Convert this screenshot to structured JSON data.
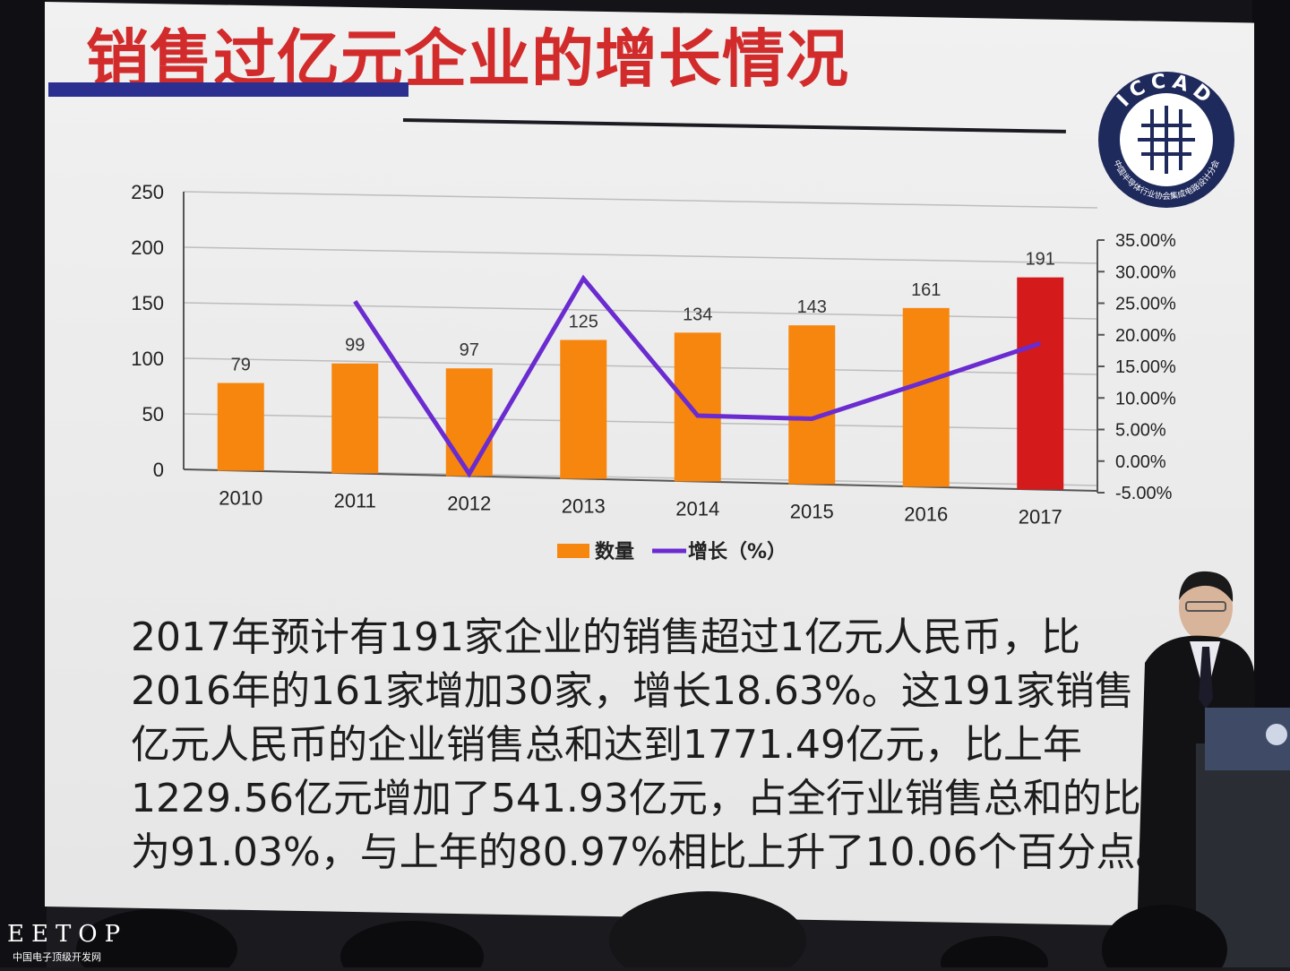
{
  "slide": {
    "title": "销售过亿元企业的增长情况",
    "logo": {
      "text": "ICCAD",
      "subtitle": "中国半导体行业协会集成电路设计分会",
      "icon": "chip-grid-icon"
    },
    "body_lines": [
      "2017年预计有191家企业的销售超过1亿元人民币，比",
      "2016年的161家增加30家，增长18.63%。这191家销售",
      "亿元人民币的企业销售总和达到1771.49亿元，比上年",
      "1229.56亿元增加了541.93亿元，占全行业销售总和的比",
      "为91.03%，与上年的80.97%相比上升了10.06个百分点。"
    ]
  },
  "watermark": {
    "logo": "EETOP",
    "subtitle": "中国电子顶级开发网"
  },
  "colors": {
    "title": "#d22b2b",
    "bar": "#f7860f",
    "bar_highlight": "#d41a1a",
    "line": "#6a2bd0",
    "accent_blue": "#2b2f8f"
  },
  "chart_data": {
    "type": "bar",
    "categories": [
      "2010",
      "2011",
      "2012",
      "2013",
      "2014",
      "2015",
      "2016",
      "2017"
    ],
    "series": [
      {
        "name": "数量",
        "type": "bar",
        "axis": "left",
        "values": [
          79,
          99,
          97,
          125,
          134,
          143,
          161,
          191
        ],
        "data_labels": [
          "79",
          "99",
          "97",
          "125",
          "134",
          "143",
          "161",
          "191"
        ],
        "highlight_index": 7
      },
      {
        "name": "增长（%）",
        "type": "line",
        "axis": "right",
        "values": [
          null,
          25.3,
          -2.0,
          28.9,
          7.2,
          6.7,
          12.6,
          18.63
        ]
      }
    ],
    "y_left": {
      "min": 0,
      "max": 250,
      "ticks": [
        "0",
        "50",
        "100",
        "150",
        "200",
        "250"
      ]
    },
    "y_right": {
      "min": -5,
      "max": 35,
      "ticks": [
        "-5.00%",
        "0.00%",
        "5.00%",
        "10.00%",
        "15.00%",
        "20.00%",
        "25.00%",
        "30.00%",
        "35.00%"
      ]
    },
    "legend": {
      "position": "bottom"
    },
    "grid": true
  }
}
